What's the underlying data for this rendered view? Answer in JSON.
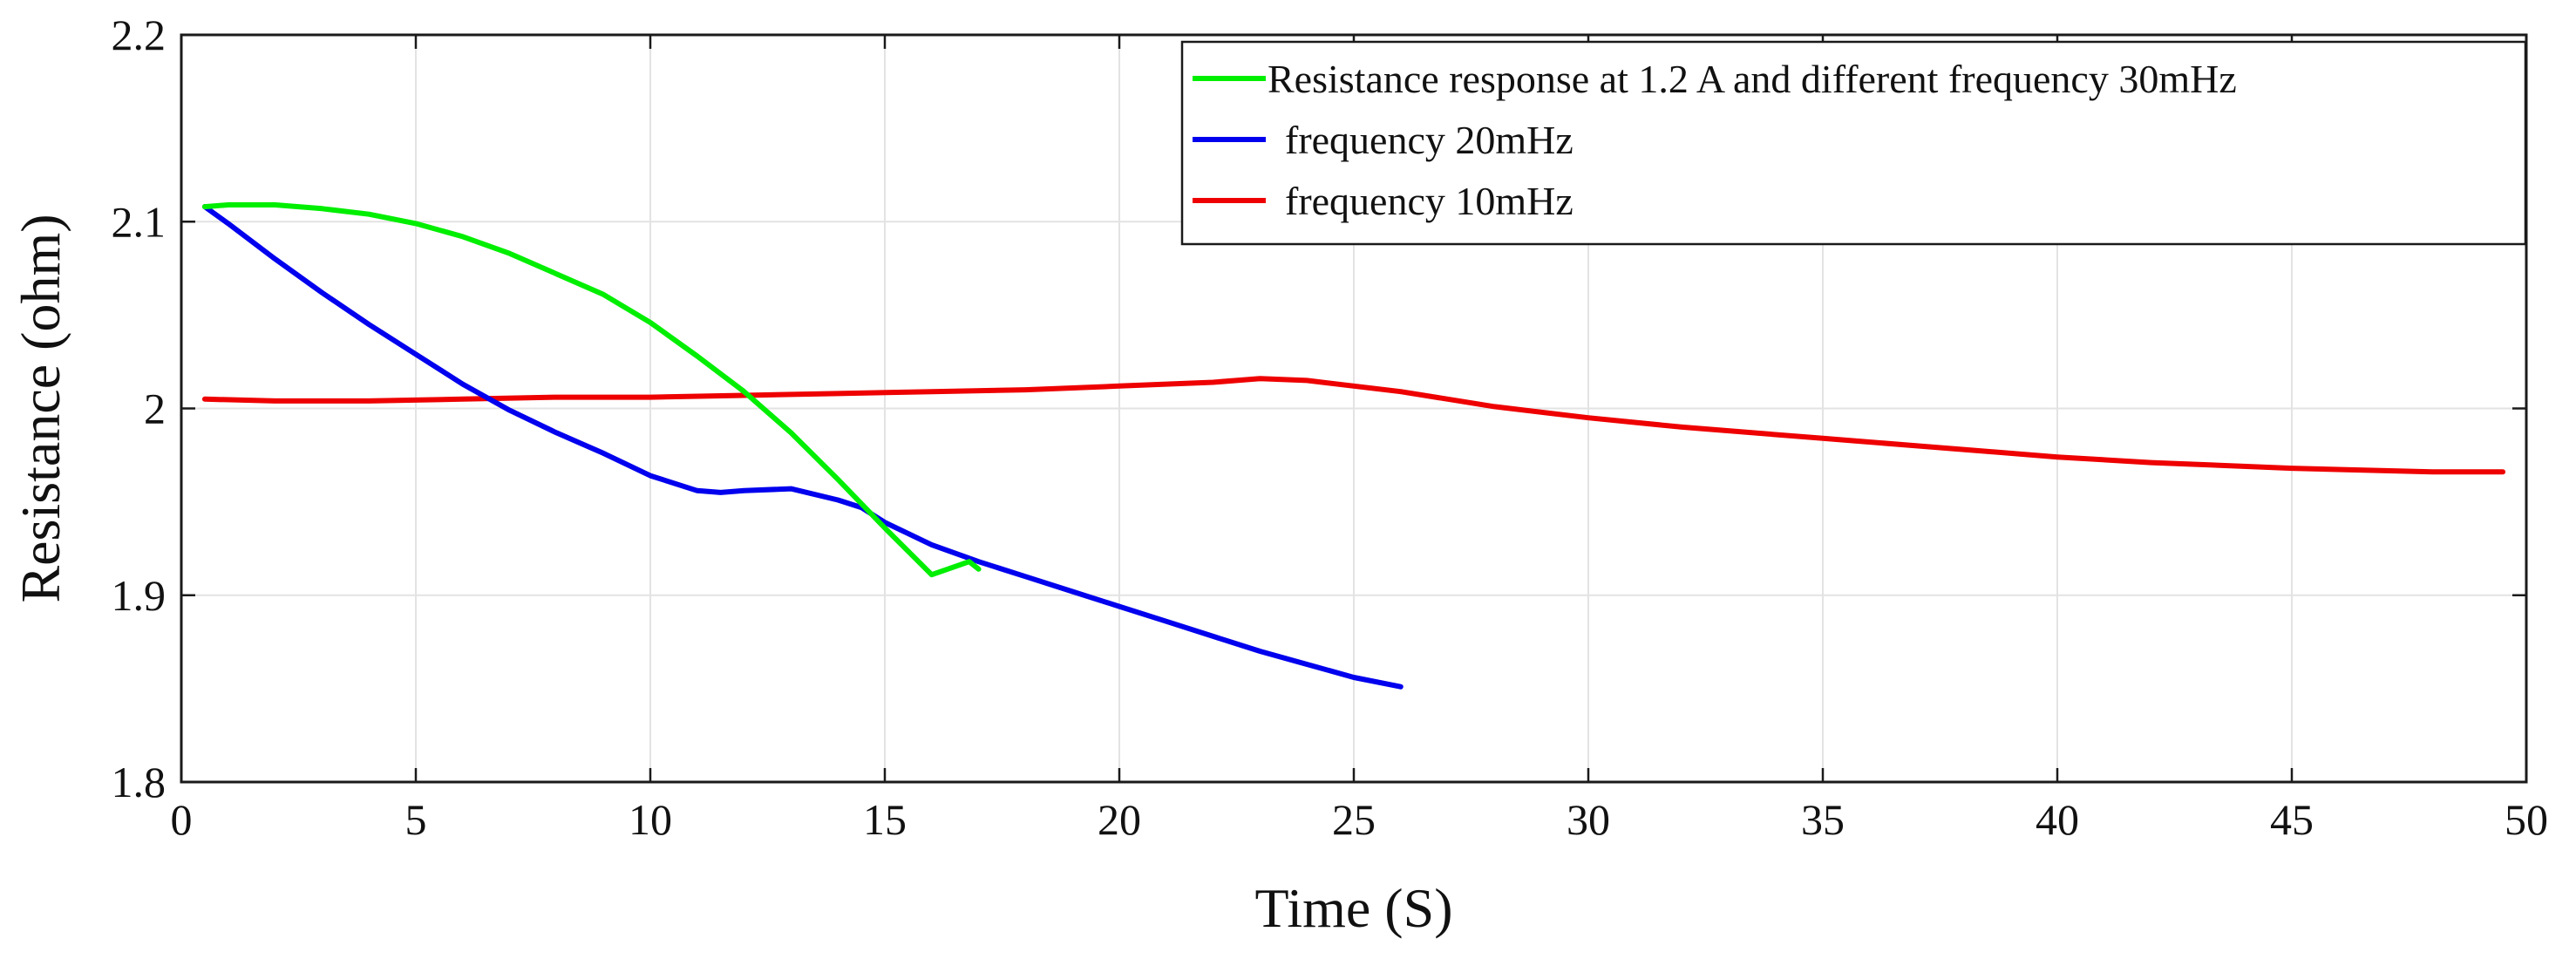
{
  "chart_data": {
    "type": "line",
    "title": "",
    "xlabel": "Time (S)",
    "ylabel": "Resistance (ohm)",
    "xlim": [
      0,
      50
    ],
    "ylim": [
      1.8,
      2.2
    ],
    "xticks": [
      0,
      5,
      10,
      15,
      20,
      25,
      30,
      35,
      40,
      45,
      50
    ],
    "xtick_labels": [
      "0",
      "5",
      "10",
      "15",
      "20",
      "25",
      "30",
      "35",
      "40",
      "45",
      "50"
    ],
    "yticks": [
      1.8,
      1.9,
      2.0,
      2.1,
      2.2
    ],
    "ytick_labels": [
      "1.8",
      "1.9",
      "2",
      "2.1",
      "2.2"
    ],
    "grid": true,
    "legend_position": "top-right",
    "series": [
      {
        "name": "Resistance response at 1.2 A and different frequency 30mHz",
        "color": "#00ee00",
        "x": [
          0.5,
          1,
          2,
          3,
          4,
          5,
          6,
          7,
          8,
          9,
          10,
          11,
          12,
          13,
          14,
          15,
          16,
          16.8,
          17.0
        ],
        "y": [
          2.108,
          2.109,
          2.109,
          2.107,
          2.104,
          2.099,
          2.092,
          2.083,
          2.072,
          2.061,
          2.046,
          2.028,
          2.009,
          1.987,
          1.962,
          1.936,
          1.911,
          1.918,
          1.914
        ]
      },
      {
        "name": "frequency 20mHz",
        "color": "#0000ee",
        "x": [
          0.5,
          1,
          2,
          3,
          4,
          5,
          6,
          7,
          8,
          9,
          10,
          11,
          11.5,
          12,
          13,
          14,
          14.5,
          15,
          16,
          17,
          18,
          19,
          20,
          21,
          22,
          23,
          24,
          25,
          26
        ],
        "y": [
          2.108,
          2.099,
          2.08,
          2.062,
          2.045,
          2.029,
          2.013,
          1.999,
          1.987,
          1.976,
          1.964,
          1.956,
          1.955,
          1.956,
          1.957,
          1.951,
          1.947,
          1.939,
          1.927,
          1.918,
          1.91,
          1.902,
          1.894,
          1.886,
          1.878,
          1.87,
          1.863,
          1.856,
          1.851
        ]
      },
      {
        "name": "frequency 10mHz",
        "color": "#ee0000",
        "x": [
          0.5,
          2,
          4,
          6,
          8,
          10,
          12,
          14,
          16,
          18,
          20,
          22,
          23,
          24,
          26,
          28,
          30,
          32,
          35,
          38,
          40,
          42,
          45,
          48,
          49.5
        ],
        "y": [
          2.005,
          2.004,
          2.004,
          2.005,
          2.006,
          2.006,
          2.007,
          2.008,
          2.009,
          2.01,
          2.012,
          2.014,
          2.016,
          2.015,
          2.009,
          2.001,
          1.995,
          1.99,
          1.984,
          1.978,
          1.974,
          1.971,
          1.968,
          1.966,
          1.966
        ]
      }
    ]
  }
}
